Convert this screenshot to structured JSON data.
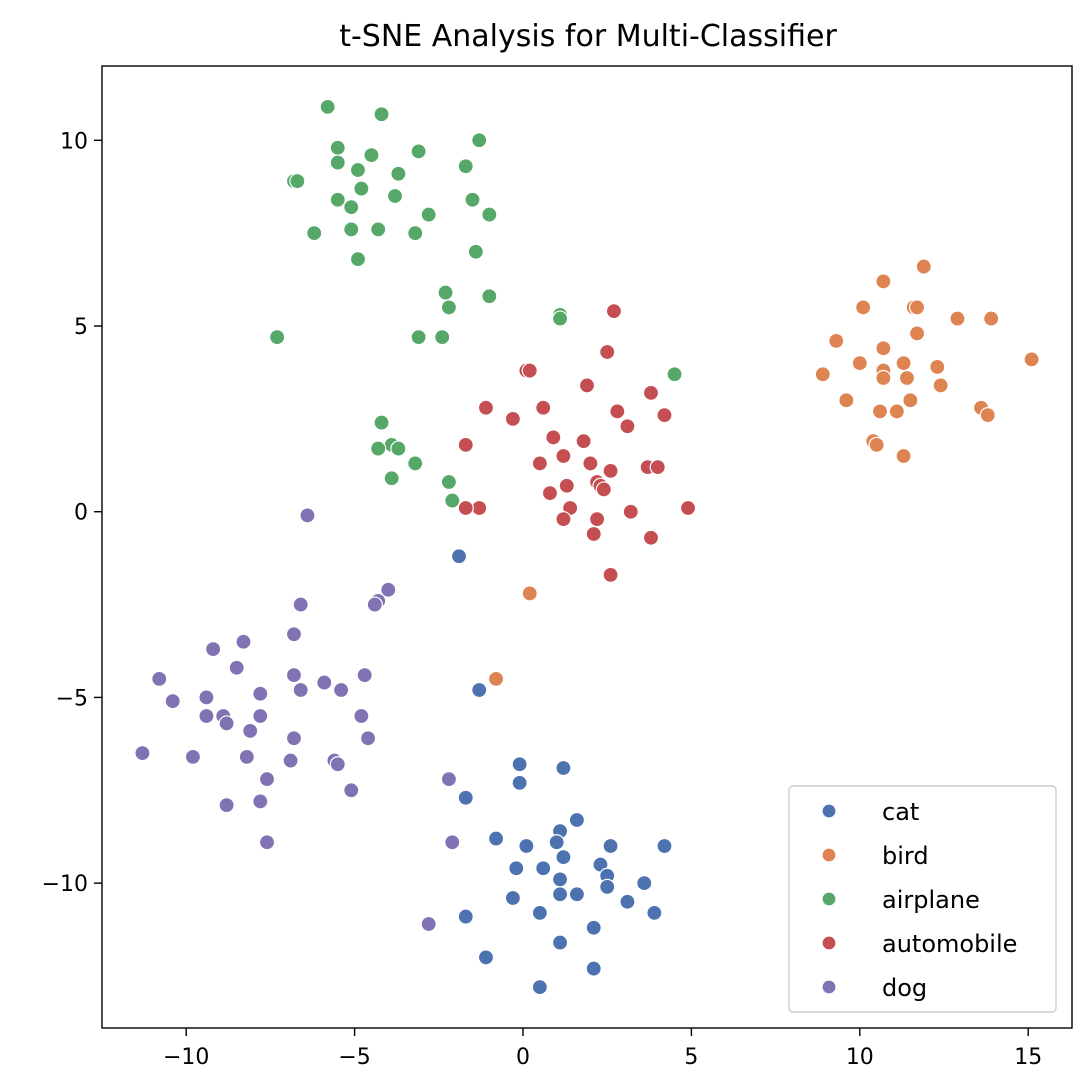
{
  "chart_data": {
    "type": "scatter",
    "title": "t-SNE Analysis for Multi-Classifier",
    "xlabel": "",
    "ylabel": "",
    "xlim": [
      -12.5,
      16.3
    ],
    "ylim": [
      -13.9,
      12.0
    ],
    "x_ticks": [
      -10,
      -5,
      0,
      5,
      10,
      15
    ],
    "x_tick_labels": [
      "−10",
      "−5",
      "0",
      "5",
      "10",
      "15"
    ],
    "y_ticks": [
      -10,
      -5,
      0,
      5,
      10
    ],
    "y_tick_labels": [
      "−10",
      "−5",
      "0",
      "5",
      "10"
    ],
    "grid": false,
    "legend_position": "bottom-right",
    "series": [
      {
        "name": "cat",
        "color": "#4C72B0",
        "points": [
          [
            -1.9,
            -1.2
          ],
          [
            -1.3,
            -4.8
          ],
          [
            -1.7,
            -7.7
          ],
          [
            -0.1,
            -6.8
          ],
          [
            -0.1,
            -7.3
          ],
          [
            1.2,
            -6.9
          ],
          [
            1.6,
            -8.3
          ],
          [
            -0.8,
            -8.8
          ],
          [
            0.1,
            -9.0
          ],
          [
            1.1,
            -8.6
          ],
          [
            2.6,
            -9.0
          ],
          [
            4.2,
            -9.0
          ],
          [
            1.0,
            -8.9
          ],
          [
            -0.2,
            -9.6
          ],
          [
            0.6,
            -9.6
          ],
          [
            1.2,
            -9.3
          ],
          [
            2.3,
            -9.5
          ],
          [
            2.5,
            -9.8
          ],
          [
            3.6,
            -10.0
          ],
          [
            1.1,
            -9.9
          ],
          [
            2.5,
            -10.1
          ],
          [
            -0.3,
            -10.4
          ],
          [
            1.1,
            -10.3
          ],
          [
            1.6,
            -10.3
          ],
          [
            3.1,
            -10.5
          ],
          [
            3.9,
            -10.8
          ],
          [
            -1.7,
            -10.9
          ],
          [
            0.5,
            -10.8
          ],
          [
            1.1,
            -11.6
          ],
          [
            2.1,
            -11.2
          ],
          [
            -1.1,
            -12.0
          ],
          [
            2.1,
            -12.3
          ],
          [
            0.5,
            -12.8
          ]
        ]
      },
      {
        "name": "bird",
        "color": "#DD8452",
        "points": [
          [
            0.2,
            -2.2
          ],
          [
            -0.8,
            -4.5
          ],
          [
            11.9,
            6.6
          ],
          [
            10.7,
            6.2
          ],
          [
            10.1,
            5.5
          ],
          [
            11.6,
            5.5
          ],
          [
            11.7,
            5.5
          ],
          [
            12.9,
            5.2
          ],
          [
            13.9,
            5.2
          ],
          [
            9.3,
            4.6
          ],
          [
            10.7,
            4.4
          ],
          [
            11.7,
            4.8
          ],
          [
            15.1,
            4.1
          ],
          [
            10.0,
            4.0
          ],
          [
            11.3,
            4.0
          ],
          [
            12.3,
            3.9
          ],
          [
            8.9,
            3.7
          ],
          [
            10.7,
            3.8
          ],
          [
            10.7,
            3.6
          ],
          [
            11.4,
            3.6
          ],
          [
            12.4,
            3.4
          ],
          [
            9.6,
            3.0
          ],
          [
            11.5,
            3.0
          ],
          [
            13.6,
            2.8
          ],
          [
            10.6,
            2.7
          ],
          [
            11.1,
            2.7
          ],
          [
            13.8,
            2.6
          ],
          [
            10.4,
            1.9
          ],
          [
            10.5,
            1.8
          ],
          [
            11.3,
            1.5
          ]
        ]
      },
      {
        "name": "airplane",
        "color": "#55A868",
        "points": [
          [
            -5.8,
            10.9
          ],
          [
            -4.2,
            10.7
          ],
          [
            -1.3,
            10.0
          ],
          [
            -5.5,
            9.8
          ],
          [
            -5.5,
            9.4
          ],
          [
            -4.5,
            9.6
          ],
          [
            -3.1,
            9.7
          ],
          [
            -1.7,
            9.3
          ],
          [
            -4.9,
            9.2
          ],
          [
            -3.7,
            9.1
          ],
          [
            -6.8,
            8.9
          ],
          [
            -6.7,
            8.9
          ],
          [
            -4.8,
            8.7
          ],
          [
            -3.8,
            8.5
          ],
          [
            -5.5,
            8.4
          ],
          [
            -1.5,
            8.4
          ],
          [
            -5.1,
            8.2
          ],
          [
            -2.8,
            8.0
          ],
          [
            -1.0,
            8.0
          ],
          [
            -6.2,
            7.5
          ],
          [
            -5.1,
            7.6
          ],
          [
            -4.3,
            7.6
          ],
          [
            -3.2,
            7.5
          ],
          [
            -4.9,
            6.8
          ],
          [
            -1.4,
            7.0
          ],
          [
            -2.3,
            5.9
          ],
          [
            -2.2,
            5.5
          ],
          [
            -1.0,
            5.8
          ],
          [
            1.1,
            5.3
          ],
          [
            1.1,
            5.2
          ],
          [
            -7.3,
            4.7
          ],
          [
            -3.1,
            4.7
          ],
          [
            -2.4,
            4.7
          ],
          [
            4.5,
            3.7
          ],
          [
            -4.2,
            2.4
          ],
          [
            -3.9,
            1.8
          ],
          [
            -3.7,
            1.7
          ],
          [
            -4.3,
            1.7
          ],
          [
            -3.2,
            1.3
          ],
          [
            -3.9,
            0.9
          ],
          [
            -2.2,
            0.8
          ],
          [
            -2.1,
            0.3
          ]
        ]
      },
      {
        "name": "automobile",
        "color": "#C44E52",
        "points": [
          [
            2.7,
            5.4
          ],
          [
            2.5,
            4.3
          ],
          [
            0.1,
            3.8
          ],
          [
            0.2,
            3.8
          ],
          [
            1.9,
            3.4
          ],
          [
            3.8,
            3.2
          ],
          [
            -1.1,
            2.8
          ],
          [
            0.6,
            2.8
          ],
          [
            2.8,
            2.7
          ],
          [
            4.2,
            2.6
          ],
          [
            -0.3,
            2.5
          ],
          [
            3.1,
            2.3
          ],
          [
            0.9,
            2.0
          ],
          [
            1.8,
            1.9
          ],
          [
            -1.7,
            1.8
          ],
          [
            1.2,
            1.5
          ],
          [
            0.5,
            1.3
          ],
          [
            2.0,
            1.3
          ],
          [
            2.6,
            1.1
          ],
          [
            3.7,
            1.2
          ],
          [
            4.0,
            1.2
          ],
          [
            2.2,
            0.8
          ],
          [
            2.3,
            0.7
          ],
          [
            1.3,
            0.7
          ],
          [
            2.4,
            0.6
          ],
          [
            0.8,
            0.5
          ],
          [
            -1.3,
            0.1
          ],
          [
            -1.7,
            0.1
          ],
          [
            1.4,
            0.1
          ],
          [
            3.2,
            0.0
          ],
          [
            4.9,
            0.1
          ],
          [
            1.2,
            -0.2
          ],
          [
            2.2,
            -0.2
          ],
          [
            2.1,
            -0.6
          ],
          [
            3.8,
            -0.7
          ],
          [
            2.6,
            -1.7
          ]
        ]
      },
      {
        "name": "dog",
        "color": "#8172B3",
        "points": [
          [
            -6.4,
            -0.1
          ],
          [
            -4.0,
            -2.1
          ],
          [
            -4.3,
            -2.4
          ],
          [
            -4.4,
            -2.5
          ],
          [
            -6.6,
            -2.5
          ],
          [
            -6.8,
            -3.3
          ],
          [
            -8.3,
            -3.5
          ],
          [
            -9.2,
            -3.7
          ],
          [
            -8.5,
            -4.2
          ],
          [
            -10.8,
            -4.5
          ],
          [
            -6.8,
            -4.4
          ],
          [
            -5.9,
            -4.6
          ],
          [
            -4.7,
            -4.4
          ],
          [
            -6.6,
            -4.8
          ],
          [
            -5.4,
            -4.8
          ],
          [
            -7.8,
            -4.9
          ],
          [
            -10.4,
            -5.1
          ],
          [
            -9.4,
            -5.0
          ],
          [
            -9.4,
            -5.5
          ],
          [
            -8.9,
            -5.5
          ],
          [
            -7.8,
            -5.5
          ],
          [
            -4.8,
            -5.5
          ],
          [
            -8.8,
            -5.7
          ],
          [
            -8.1,
            -5.9
          ],
          [
            -6.8,
            -6.1
          ],
          [
            -4.6,
            -6.1
          ],
          [
            -11.3,
            -6.5
          ],
          [
            -9.8,
            -6.6
          ],
          [
            -8.2,
            -6.6
          ],
          [
            -6.9,
            -6.7
          ],
          [
            -5.6,
            -6.7
          ],
          [
            -5.5,
            -6.8
          ],
          [
            -7.6,
            -7.2
          ],
          [
            -2.2,
            -7.2
          ],
          [
            -5.1,
            -7.5
          ],
          [
            -7.8,
            -7.8
          ],
          [
            -8.8,
            -7.9
          ],
          [
            -7.6,
            -8.9
          ],
          [
            -2.1,
            -8.9
          ],
          [
            -2.8,
            -11.1
          ]
        ]
      }
    ]
  }
}
